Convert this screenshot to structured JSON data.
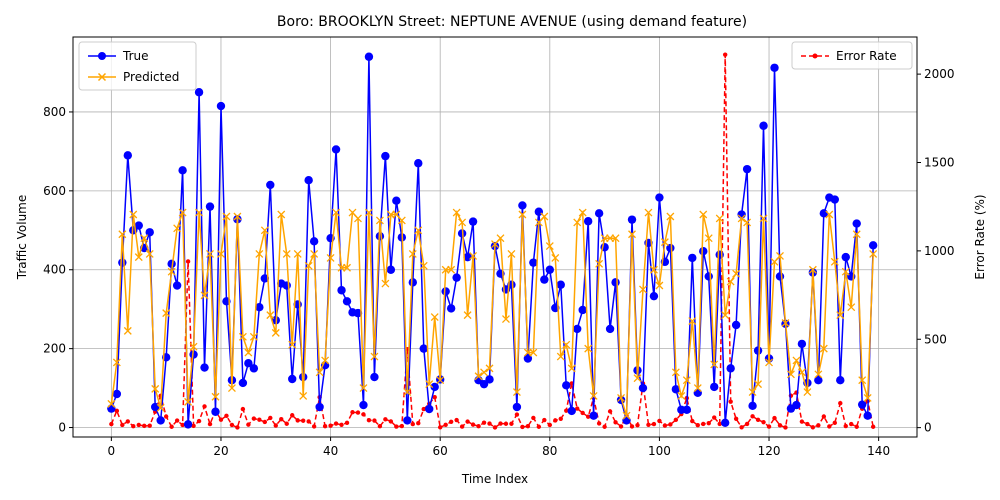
{
  "chart_data": {
    "type": "line",
    "title": "Boro: BROOKLYN Street: NEPTUNE AVENUE (using demand feature)",
    "xlabel": "Time Index",
    "ylabel": "Traffic Volume",
    "ylabel_right": "Error Rate (%)",
    "xlim": [
      -7,
      147
    ],
    "ylim": [
      -24,
      990
    ],
    "ylim_right": [
      -53,
      2210
    ],
    "x_ticks": [
      0,
      20,
      40,
      60,
      80,
      100,
      120,
      140
    ],
    "y_ticks": [
      0,
      200,
      400,
      600,
      800
    ],
    "y_ticks_right": [
      0,
      500,
      1000,
      1500,
      2000
    ],
    "grid": true,
    "legend_left_placement": "top-left",
    "legend_right_placement": "top-right",
    "colors": {
      "true": "#0000ff",
      "predicted": "#ffa500",
      "error": "#ff0000",
      "grid": "#b0b0b0"
    },
    "series": [
      {
        "name": "True",
        "axis": "left",
        "style": "line-circle",
        "values": [
          48,
          85,
          418,
          690,
          500,
          512,
          455,
          495,
          52,
          18,
          178,
          415,
          360,
          652,
          8,
          185,
          850,
          152,
          560,
          40,
          815,
          320,
          120,
          528,
          113,
          163,
          150,
          305,
          378,
          615,
          272,
          365,
          360,
          123,
          312,
          128,
          627,
          472,
          52,
          158,
          480,
          705,
          348,
          320,
          292,
          290,
          57,
          940,
          128,
          485,
          688,
          400,
          575,
          482,
          18,
          368,
          670,
          200,
          47,
          103,
          122,
          345,
          302,
          380,
          492,
          432,
          522,
          120,
          110,
          122,
          460,
          390,
          350,
          362,
          52,
          563,
          175,
          418,
          547,
          375,
          400,
          303,
          362,
          107,
          42,
          250,
          298,
          523,
          30,
          543,
          457,
          250,
          368,
          70,
          18,
          527,
          145,
          100,
          468,
          333,
          583,
          420,
          455,
          97,
          45,
          45,
          430,
          88,
          447,
          383,
          103,
          438,
          12,
          150,
          260,
          540,
          655,
          55,
          195,
          765,
          175,
          912,
          383,
          263,
          48,
          57,
          212,
          113,
          393,
          120,
          543,
          583,
          578,
          120,
          432,
          383,
          517,
          58,
          30,
          462
        ]
      },
      {
        "name": "Predicted",
        "axis": "left",
        "style": "line-x",
        "values": [
          60,
          165,
          490,
          245,
          540,
          432,
          480,
          440,
          98,
          50,
          290,
          395,
          505,
          545,
          65,
          205,
          545,
          335,
          440,
          78,
          440,
          535,
          100,
          535,
          230,
          190,
          230,
          440,
          500,
          285,
          240,
          540,
          440,
          210,
          440,
          80,
          410,
          440,
          140,
          170,
          430,
          545,
          405,
          405,
          545,
          530,
          100,
          545,
          180,
          525,
          365,
          540,
          540,
          525,
          90,
          440,
          500,
          410,
          110,
          280,
          120,
          400,
          400,
          545,
          520,
          285,
          435,
          130,
          140,
          150,
          465,
          480,
          275,
          440,
          90,
          540,
          190,
          190,
          520,
          535,
          460,
          430,
          180,
          210,
          150,
          520,
          545,
          200,
          80,
          415,
          480,
          480,
          480,
          75,
          30,
          490,
          125,
          350,
          545,
          400,
          360,
          470,
          535,
          140,
          80,
          120,
          270,
          100,
          540,
          480,
          160,
          530,
          285,
          370,
          390,
          530,
          520,
          90,
          110,
          530,
          165,
          420,
          435,
          265,
          135,
          170,
          140,
          90,
          400,
          135,
          200,
          540,
          420,
          285,
          395,
          305,
          490,
          120,
          75,
          440
        ]
      },
      {
        "name": "Error Rate",
        "axis": "right",
        "style": "dashed-dot",
        "values": [
          20,
          95,
          15,
          35,
          8,
          15,
          10,
          11,
          90,
          180,
          63,
          5,
          40,
          15,
          940,
          10,
          37,
          120,
          20,
          95,
          45,
          67,
          15,
          1,
          105,
          17,
          51,
          45,
          32,
          55,
          12,
          48,
          22,
          70,
          41,
          39,
          35,
          7,
          172,
          8,
          11,
          23,
          16,
          27,
          87,
          85,
          75,
          42,
          40,
          8,
          47,
          35,
          6,
          9,
          444,
          20,
          25,
          105,
          135,
          172,
          2,
          16,
          33,
          43,
          6,
          34,
          17,
          8,
          28,
          23,
          1,
          23,
          22,
          22,
          74,
          4,
          8,
          55,
          5,
          43,
          15,
          41,
          50,
          96,
          250,
          108,
          83,
          62,
          169,
          24,
          5,
          92,
          30,
          7,
          66,
          7,
          14,
          250,
          16,
          20,
          38,
          12,
          18,
          44,
          77,
          167,
          37,
          14,
          21,
          25,
          57,
          21,
          2110,
          147,
          50,
          2,
          21,
          64,
          44,
          31,
          6,
          54,
          13,
          1,
          181,
          198,
          34,
          20,
          2,
          13,
          63,
          7,
          27,
          138,
          9,
          20,
          5,
          107,
          150,
          5
        ]
      }
    ]
  }
}
